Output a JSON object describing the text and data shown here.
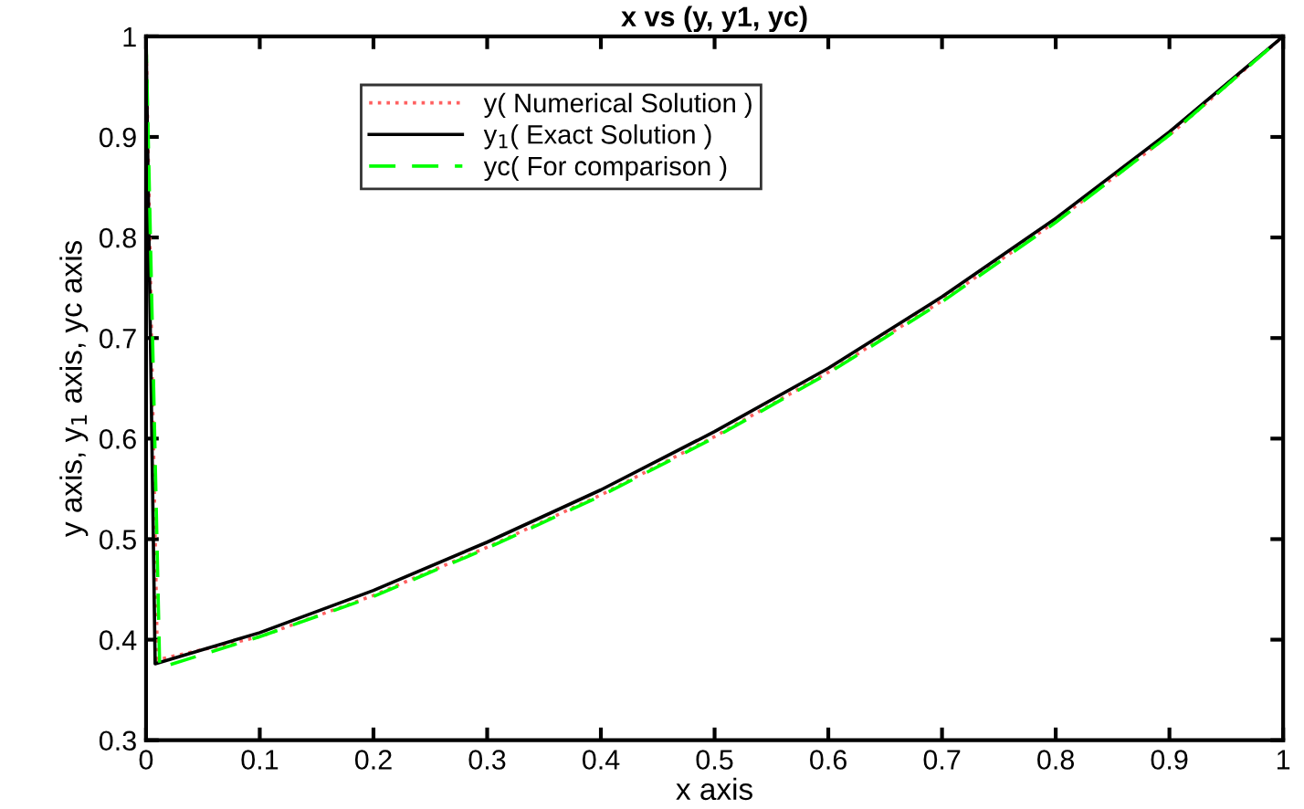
{
  "chart_data": {
    "type": "line",
    "title": "x vs (y, y1, yc)",
    "xlabel": "x axis",
    "ylabel": "y axis, y$_{1}$ axis, yc axis",
    "xlim": [
      0,
      1
    ],
    "ylim": [
      0.3,
      1
    ],
    "xticks": [
      0,
      0.1,
      0.2,
      0.3,
      0.4,
      0.5,
      0.6,
      0.7,
      0.8,
      0.9,
      1
    ],
    "yticks": [
      0.3,
      0.4,
      0.5,
      0.6,
      0.7,
      0.8,
      0.9,
      1
    ],
    "grid": false,
    "legend": "top",
    "marker": "none",
    "series": [
      {
        "name": "y( Numerical Solution )",
        "color": "#ff6060",
        "line_style": "dotted",
        "x": [
          0,
          0.01,
          0.1,
          0.2,
          0.3,
          0.4,
          0.5,
          0.6,
          0.7,
          0.8,
          0.9,
          1
        ],
        "values": [
          1,
          0.38,
          0.403,
          0.444,
          0.492,
          0.544,
          0.602,
          0.666,
          0.737,
          0.816,
          0.902,
          1
        ]
      },
      {
        "name": "y$_{1}$( Exact Solution )",
        "color": "#000000",
        "line_style": "solid",
        "x": [
          0,
          0.008,
          0.1,
          0.2,
          0.3,
          0.4,
          0.5,
          0.6,
          0.7,
          0.8,
          0.9,
          1
        ],
        "values": [
          1,
          0.376,
          0.407,
          0.449,
          0.497,
          0.549,
          0.607,
          0.67,
          0.741,
          0.819,
          0.905,
          1
        ]
      },
      {
        "name": "yc( For comparison )",
        "color": "#00ff00",
        "line_style": "dashed",
        "x": [
          0,
          0.012,
          0.1,
          0.2,
          0.3,
          0.4,
          0.5,
          0.6,
          0.7,
          0.8,
          0.9,
          1
        ],
        "values": [
          1,
          0.372,
          0.403,
          0.443,
          0.491,
          0.543,
          0.601,
          0.665,
          0.736,
          0.815,
          0.902,
          1
        ]
      }
    ]
  }
}
